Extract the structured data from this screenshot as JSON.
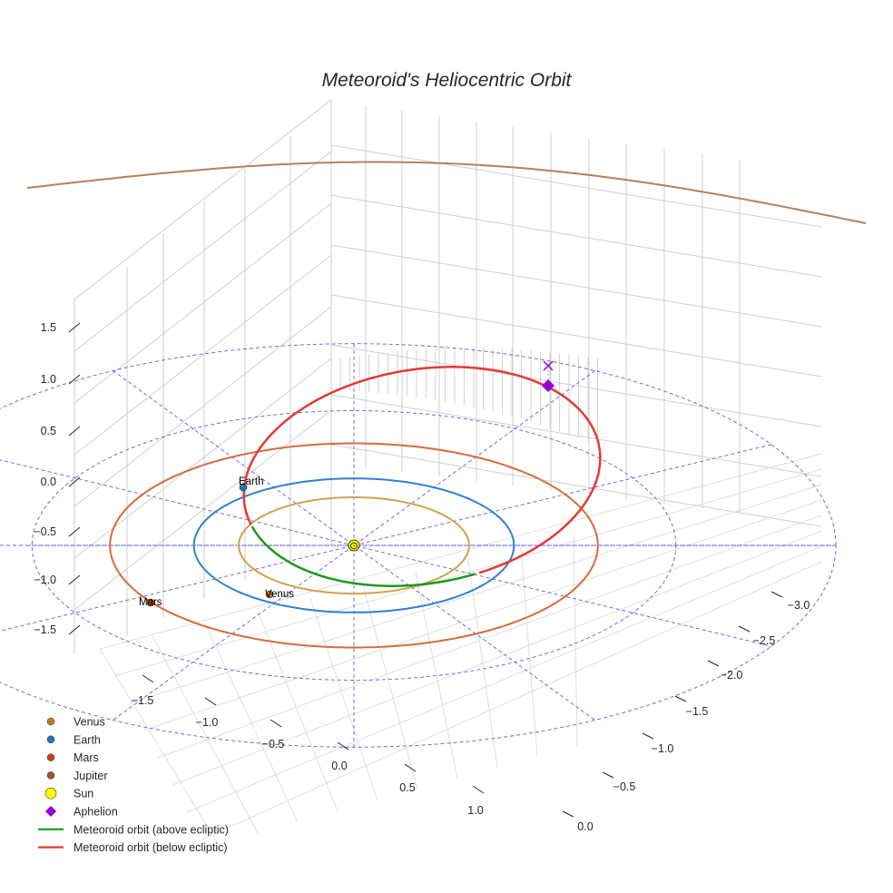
{
  "chart_data": {
    "type": "line",
    "title": "Meteoroid's Heliocentric Orbit",
    "axes": {
      "x_ticks": [
        "−1.5",
        "−1.0",
        "−0.5",
        "0.0",
        "0.5",
        "1.0"
      ],
      "y_ticks": [
        "−3.0",
        "−2.5",
        "−2.0",
        "−1.5",
        "−1.0",
        "−0.5",
        "0.0"
      ],
      "z_ticks": [
        "1.5",
        "1.0",
        "0.5",
        "0.0",
        "−0.5",
        "−1.0",
        "−1.5"
      ],
      "grid": true,
      "ecliptic_reference_grid": true
    },
    "series": [
      {
        "name": "Venus",
        "kind": "orbit",
        "radius_au": 0.72,
        "color": "#d4a04a",
        "marker_color": "#c07a1a"
      },
      {
        "name": "Earth",
        "kind": "orbit",
        "radius_au": 1.0,
        "color": "#2f80d0",
        "marker_color": "#1f77b4"
      },
      {
        "name": "Mars",
        "kind": "orbit",
        "radius_au": 1.52,
        "color": "#d86a3e",
        "marker_color": "#c1440e"
      },
      {
        "name": "Jupiter",
        "kind": "orbit",
        "radius_au": 5.2,
        "color": "#b5805e",
        "marker_color": "#a0522d"
      },
      {
        "name": "Sun",
        "kind": "point",
        "color": "#ffff00"
      },
      {
        "name": "Aphelion",
        "kind": "point",
        "color": "#9400d3"
      },
      {
        "name": "Meteoroid orbit (above ecliptic)",
        "kind": "orbit_segment",
        "color": "#1a9a1a"
      },
      {
        "name": "Meteoroid orbit (below ecliptic)",
        "kind": "orbit_segment",
        "color": "#e53935"
      }
    ],
    "annotations": [
      "Earth",
      "Venus",
      "Mars"
    ],
    "legend": "bottom-left"
  }
}
